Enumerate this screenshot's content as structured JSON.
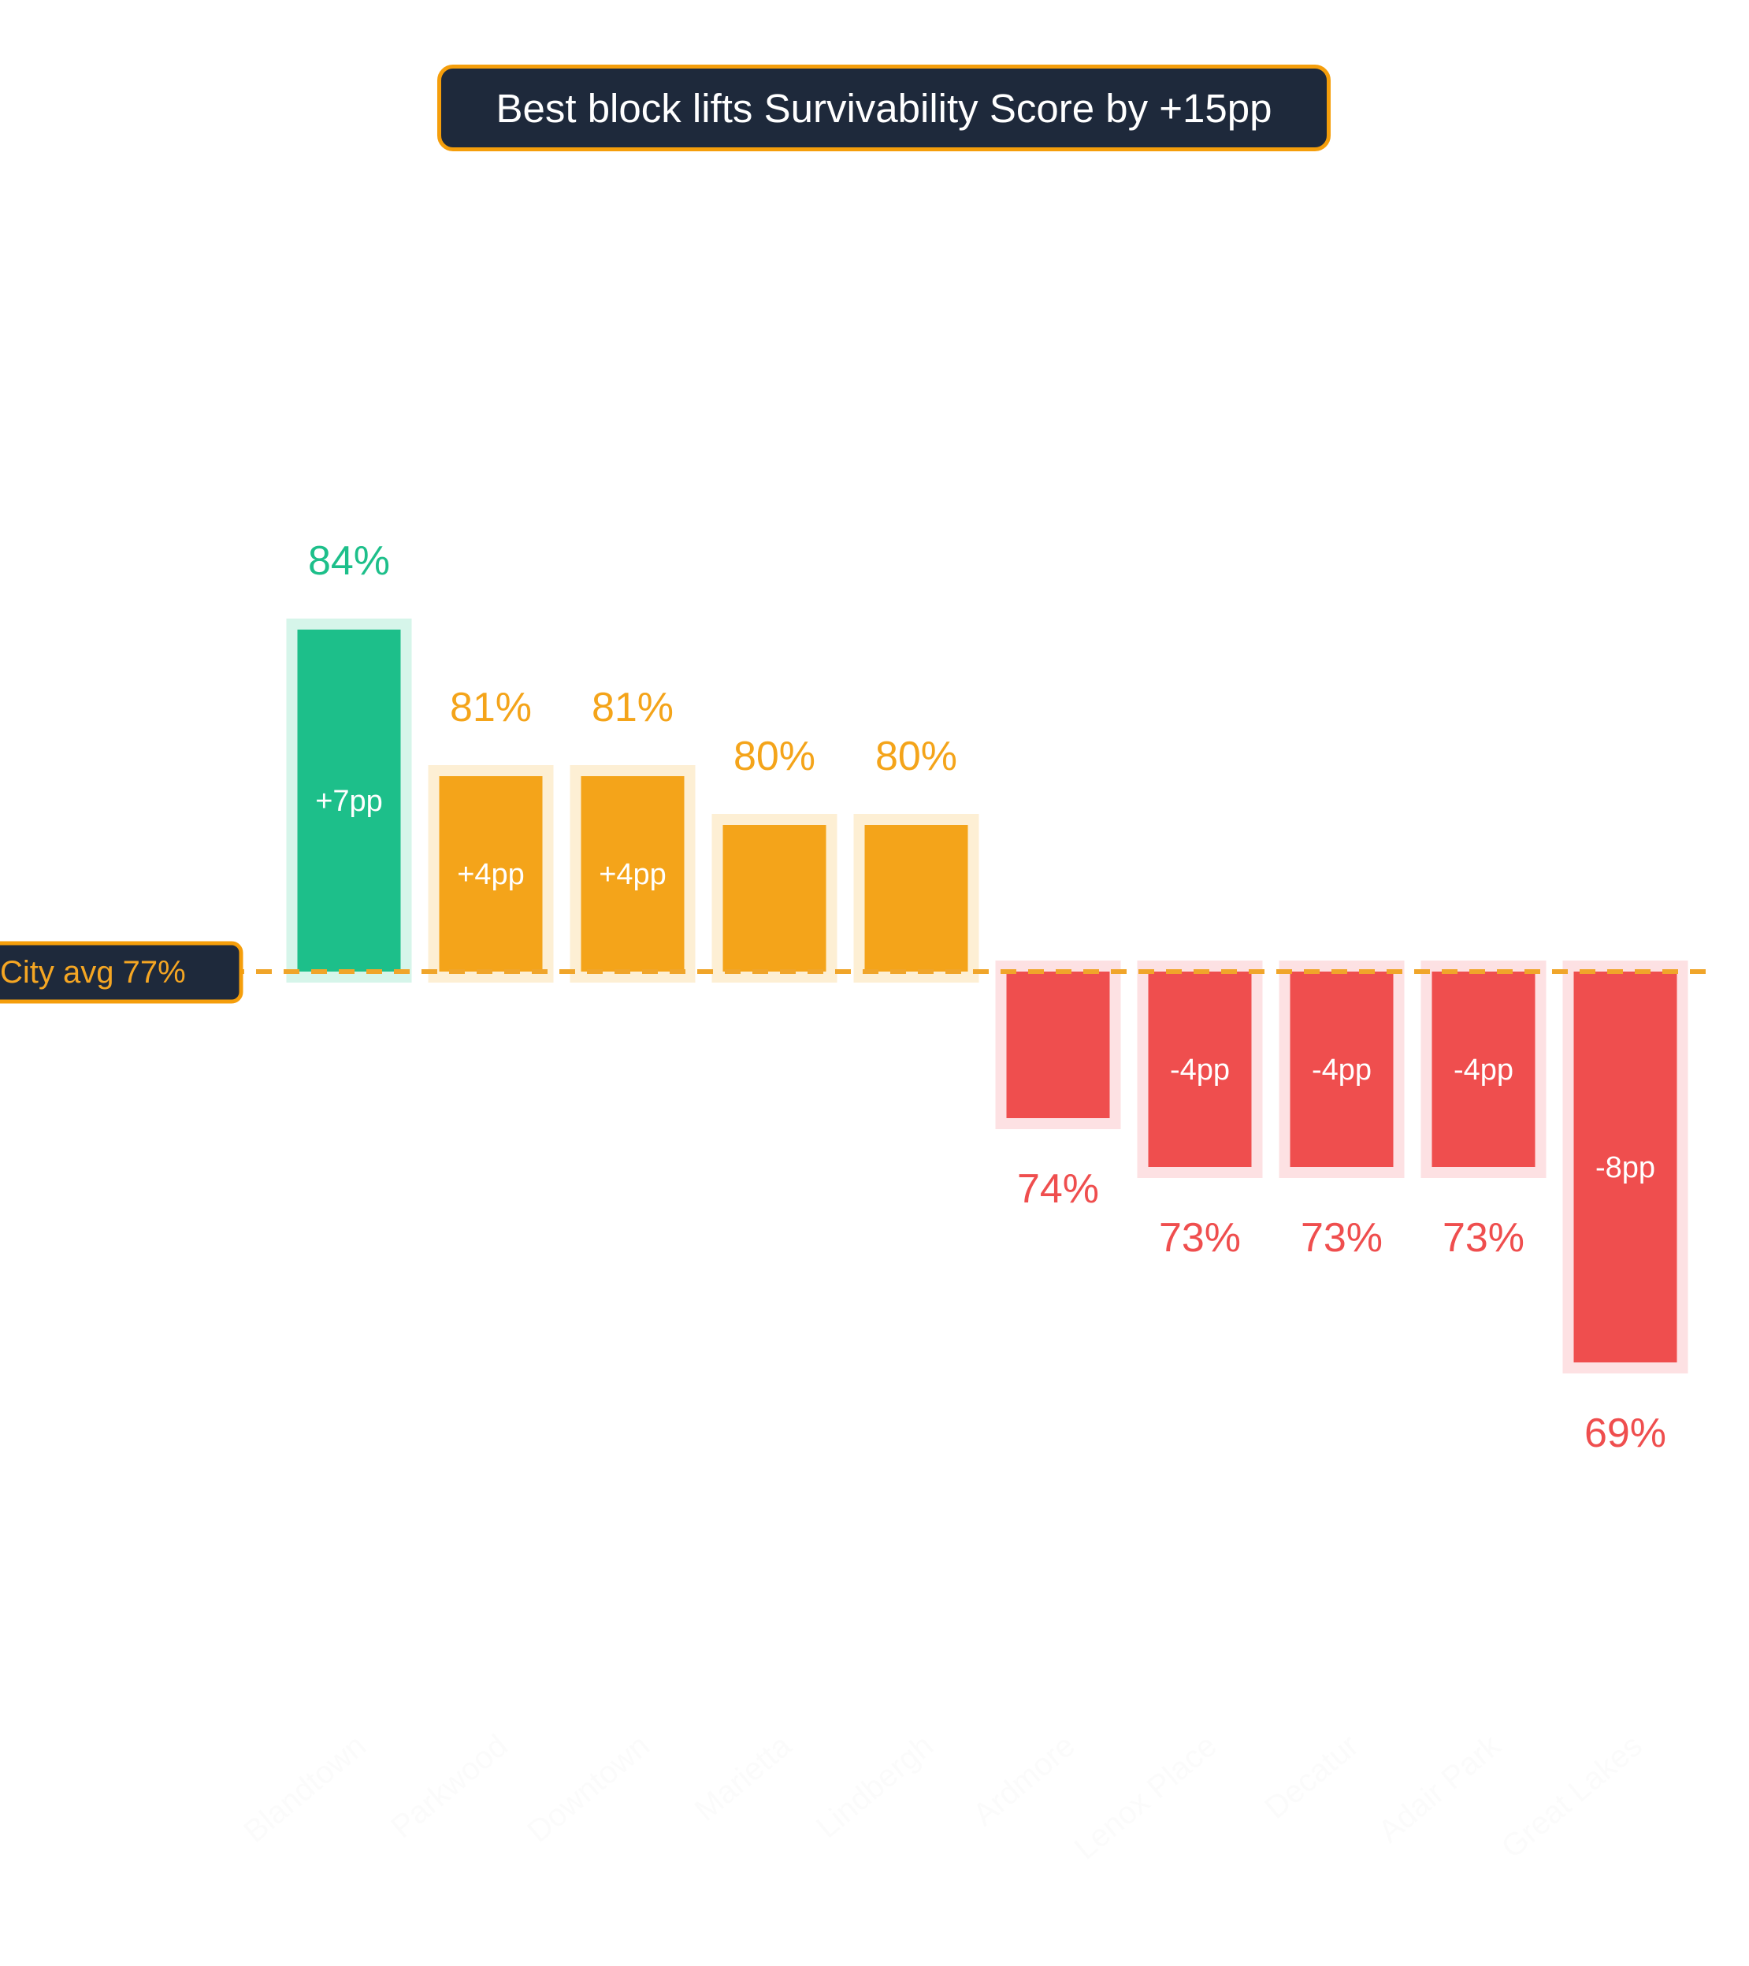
{
  "chart_data": {
    "type": "bar",
    "title": "Best block lifts Survivability Score by +15pp",
    "baseline": {
      "label": "City avg",
      "value": 77,
      "value_label": "77%"
    },
    "categories": [
      "Blandtown",
      "Parkwood",
      "Downtown",
      "Marietta",
      "Lindbergh",
      "Ardmore",
      "Lenox Place",
      "Decatur",
      "Adair Park",
      "Great Lakes"
    ],
    "values": [
      84,
      81,
      81,
      80,
      80,
      74,
      73,
      73,
      73,
      69
    ],
    "value_labels": [
      "84%",
      "81%",
      "81%",
      "80%",
      "80%",
      "74%",
      "73%",
      "73%",
      "73%",
      "69%"
    ],
    "delta_labels": [
      "+7pp",
      "+4pp",
      "+4pp",
      "",
      "",
      "",
      "-4pp",
      "-4pp",
      "-4pp",
      "-8pp"
    ],
    "bar_colors": [
      "#1dbf8a",
      "#f4a41a",
      "#f4a41a",
      "#f4a41a",
      "#f4a41a",
      "#ef4e4e",
      "#ef4e4e",
      "#ef4e4e",
      "#ef4e4e",
      "#ef4e4e"
    ],
    "halo_colors": [
      "#d6f5ea",
      "#fdefd4",
      "#fdefd4",
      "#fdefd4",
      "#fdefd4",
      "#fde1e3",
      "#fde1e3",
      "#fde1e3",
      "#fde1e3",
      "#fde1e3"
    ],
    "ylim": [
      60,
      90
    ],
    "grid": false,
    "legend": "none"
  }
}
